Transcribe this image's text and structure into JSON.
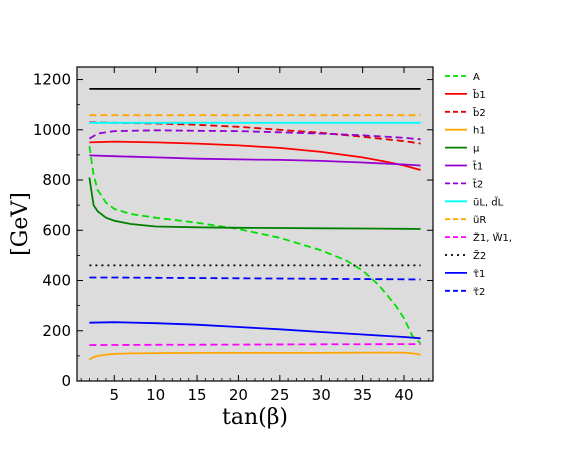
{
  "chart_data": {
    "type": "line",
    "xlabel": "tan(β)",
    "ylabel": "[GeV]",
    "xlim": [
      0.5,
      43.5
    ],
    "ylim": [
      0,
      1250
    ],
    "xticks": [
      5,
      10,
      15,
      20,
      25,
      30,
      35,
      40
    ],
    "yticks": [
      0,
      200,
      400,
      600,
      800,
      1000,
      1200
    ],
    "grid": false,
    "background": "#dcdcdc",
    "legend_position": "right-outside",
    "series": [
      {
        "name": "A",
        "color": "#00e000",
        "dash": "dashed",
        "x": [
          2,
          2.5,
          3,
          4,
          5,
          7,
          10,
          15,
          20,
          25,
          30,
          33,
          35,
          37,
          38,
          39,
          40,
          41,
          42
        ],
        "y": [
          935,
          820,
          760,
          710,
          685,
          665,
          650,
          630,
          605,
          570,
          520,
          480,
          440,
          380,
          340,
          300,
          250,
          180,
          150
        ]
      },
      {
        "name": "b̃1",
        "color": "#ff0000",
        "dash": "solid",
        "x": [
          2,
          5,
          10,
          15,
          20,
          25,
          30,
          35,
          38,
          40,
          42
        ],
        "y": [
          950,
          953,
          950,
          945,
          938,
          928,
          912,
          890,
          872,
          858,
          840
        ]
      },
      {
        "name": "b̃2",
        "color": "#e00000",
        "dash": "dashed",
        "x": [
          2,
          5,
          10,
          15,
          20,
          25,
          30,
          35,
          40,
          42
        ],
        "y": [
          1030,
          1028,
          1025,
          1020,
          1012,
          1000,
          988,
          972,
          955,
          945
        ]
      },
      {
        "name": "h1",
        "color": "#ffa500",
        "dash": "solid",
        "x": [
          2,
          2.5,
          3,
          4,
          5,
          7,
          10,
          15,
          20,
          25,
          30,
          35,
          40,
          41,
          42
        ],
        "y": [
          85,
          95,
          100,
          105,
          108,
          110,
          111,
          112,
          112,
          112,
          112,
          113,
          113,
          110,
          105
        ]
      },
      {
        "name": "μ",
        "color": "#008000",
        "dash": "solid",
        "x": [
          2,
          2.5,
          3,
          4,
          5,
          7,
          10,
          15,
          20,
          25,
          30,
          35,
          40,
          42
        ],
        "y": [
          810,
          700,
          675,
          650,
          638,
          625,
          615,
          612,
          610,
          609,
          608,
          607,
          606,
          605
        ]
      },
      {
        "name": "t̃1",
        "color": "#9400d3",
        "dash": "solid",
        "x": [
          2,
          5,
          10,
          15,
          20,
          25,
          30,
          35,
          40,
          42
        ],
        "y": [
          898,
          895,
          890,
          885,
          882,
          880,
          876,
          870,
          862,
          858
        ]
      },
      {
        "name": "t̃2",
        "color": "#9400d3",
        "dash": "dashed",
        "x": [
          2,
          3,
          5,
          10,
          15,
          20,
          25,
          30,
          35,
          40,
          42
        ],
        "y": [
          965,
          985,
          995,
          998,
          996,
          995,
          990,
          985,
          978,
          968,
          962
        ]
      },
      {
        "name": "ũL, d̃L",
        "color": "#00ffff",
        "dash": "solid",
        "x": [
          2,
          42
        ],
        "y": [
          1028,
          1028
        ]
      },
      {
        "name": "ũR",
        "color": "#ffa500",
        "dash": "dashed",
        "x": [
          2,
          42
        ],
        "y": [
          1058,
          1058
        ]
      },
      {
        "name": "Z̃1, W̃1,",
        "color": "#ff00ff",
        "dash": "dashed",
        "x": [
          2,
          10,
          20,
          30,
          42
        ],
        "y": [
          143,
          144,
          145,
          146,
          147
        ]
      },
      {
        "name": "Z̃2",
        "color": "#000000",
        "dash": "dotted",
        "x": [
          2,
          42
        ],
        "y": [
          460,
          460
        ]
      },
      {
        "name": "τ̃1",
        "color": "#0000ff",
        "dash": "solid",
        "x": [
          2,
          5,
          10,
          15,
          20,
          25,
          30,
          35,
          40,
          42
        ],
        "y": [
          232,
          234,
          230,
          224,
          215,
          206,
          195,
          185,
          175,
          170
        ]
      },
      {
        "name": "τ̃2",
        "color": "#0000ff",
        "dash": "dashed",
        "x": [
          2,
          5,
          10,
          20,
          30,
          40,
          42
        ],
        "y": [
          412,
          412,
          411,
          409,
          407,
          405,
          404
        ]
      },
      {
        "name": "",
        "color": "#000000",
        "dash": "solid",
        "in_legend": false,
        "x": [
          2,
          42
        ],
        "y": [
          1163,
          1163
        ]
      }
    ]
  }
}
